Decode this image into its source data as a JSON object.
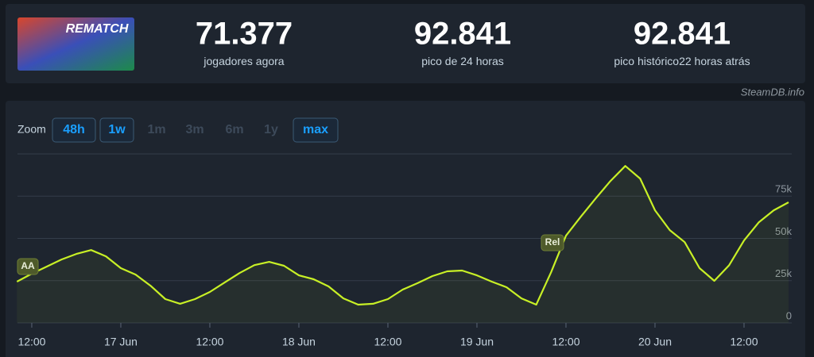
{
  "header": {
    "game_logo": "REMATCH",
    "stats": [
      {
        "value": "71.377",
        "label": "jogadores agora"
      },
      {
        "value": "92.841",
        "label": "pico de 24 horas"
      },
      {
        "value": "92.841",
        "label": "pico histórico",
        "note": "22 horas atrás"
      }
    ],
    "source": "SteamDB.info",
    "zoom": {
      "label": "Zoom",
      "options": [
        "48h",
        "1w",
        "1m",
        "3m",
        "6m",
        "1y",
        "max"
      ]
    }
  },
  "chart_data": {
    "type": "line",
    "color": "#c8f026",
    "categories": [
      null,
      "12:00",
      null,
      null,
      null,
      null,
      null,
      "17 Jun",
      null,
      null,
      null,
      null,
      null,
      "12:00",
      null,
      null,
      null,
      null,
      null,
      "18 Jun",
      null,
      null,
      null,
      null,
      null,
      "12:00",
      null,
      null,
      null,
      null,
      null,
      "19 Jun",
      null,
      null,
      null,
      null,
      null,
      "12:00",
      null,
      null,
      null,
      null,
      null,
      "20 Jun",
      null,
      null,
      null,
      null,
      null,
      "12:00",
      null,
      null,
      null
    ],
    "values": [
      24400,
      29100,
      33300,
      37500,
      40800,
      43100,
      39400,
      32400,
      28600,
      22000,
      14100,
      11300,
      14100,
      18300,
      23900,
      29500,
      34200,
      36100,
      33800,
      28100,
      25800,
      21600,
      14500,
      10800,
      11300,
      14100,
      19700,
      23500,
      27700,
      30500,
      31000,
      28100,
      24400,
      21100,
      14500,
      10800,
      30000,
      51600,
      62800,
      73600,
      84000,
      92841,
      85400,
      66600,
      54900,
      47800,
      32400,
      24900,
      34200,
      48800,
      59600,
      66600,
      71377
    ],
    "ylim": [
      0,
      100000
    ],
    "yticks": [
      0,
      {
        "value": 25000,
        "label": "25k"
      },
      {
        "value": 50000,
        "label": "50k"
      },
      {
        "value": 75000,
        "label": "75k"
      }
    ],
    "grid": true,
    "annotations": [
      "AA",
      "Rel"
    ]
  }
}
